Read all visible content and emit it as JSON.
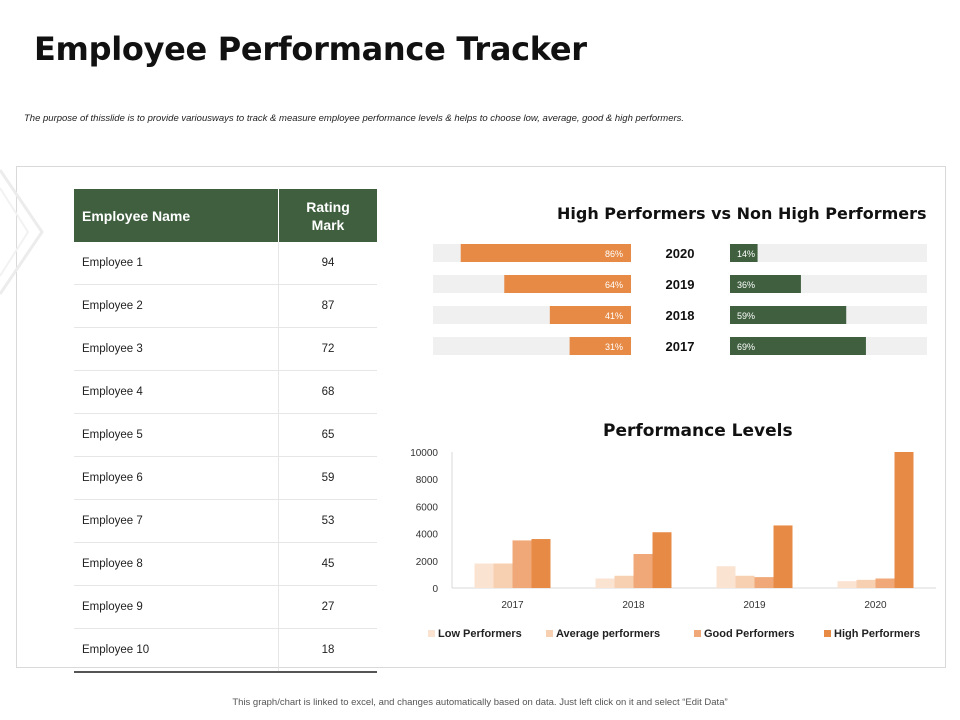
{
  "page": {
    "title": "Employee Performance Tracker",
    "subtitle": "The purpose of thisslide is to provide variousways to track & measure employee performance levels & helps to choose low, average, good & high performers.",
    "footer": "This graph/chart is linked to excel, and changes automatically based on data. Just left click on it and select “Edit Data”"
  },
  "table": {
    "headers": {
      "name": "Employee Name",
      "rating_line1": "Rating",
      "rating_line2": "Mark"
    },
    "rows": [
      {
        "name": "Employee 1",
        "rating": "94"
      },
      {
        "name": "Employee 2",
        "rating": "87"
      },
      {
        "name": "Employee 3",
        "rating": "72"
      },
      {
        "name": "Employee 4",
        "rating": "68"
      },
      {
        "name": "Employee 5",
        "rating": "65"
      },
      {
        "name": "Employee 6",
        "rating": "59"
      },
      {
        "name": "Employee 7",
        "rating": "53"
      },
      {
        "name": "Employee 8",
        "rating": "45"
      },
      {
        "name": "Employee 9",
        "rating": "27"
      },
      {
        "name": "Employee 10",
        "rating": "18"
      }
    ]
  },
  "chart_data": [
    {
      "type": "bar",
      "orientation": "horizontal-diverging",
      "title": "High Performers vs Non High Performers",
      "categories": [
        "2020",
        "2019",
        "2018",
        "2017"
      ],
      "series": [
        {
          "name": "Non High Performers",
          "side": "left",
          "color": "#e68a45",
          "values": [
            86,
            64,
            41,
            31
          ],
          "labels": [
            "86%",
            "64%",
            "41%",
            "31%"
          ]
        },
        {
          "name": "High Performers",
          "side": "right",
          "color": "#3f5f3f",
          "values": [
            14,
            36,
            59,
            69
          ],
          "labels": [
            "14%",
            "36%",
            "59%",
            "69%"
          ]
        }
      ],
      "track_color": "#f0f0f0",
      "xlim": [
        0,
        100
      ]
    },
    {
      "type": "bar",
      "title": "Performance Levels",
      "categories": [
        "2017",
        "2018",
        "2019",
        "2020"
      ],
      "series": [
        {
          "name": "Low Performers",
          "color": "#fbe3d2",
          "values": [
            1800,
            700,
            1600,
            500
          ]
        },
        {
          "name": "Average performers",
          "color": "#f7cfb1",
          "values": [
            1800,
            900,
            900,
            600
          ]
        },
        {
          "name": "Good Performers",
          "color": "#f0a878",
          "values": [
            3500,
            2500,
            800,
            700
          ]
        },
        {
          "name": "High Performers",
          "color": "#e68a45",
          "values": [
            3600,
            4100,
            4600,
            10000
          ]
        }
      ],
      "ylim": [
        0,
        10000
      ],
      "yticks": [
        "10000",
        "8000",
        "6000",
        "4000",
        "2000",
        "0"
      ],
      "legend": "bottom"
    }
  ]
}
